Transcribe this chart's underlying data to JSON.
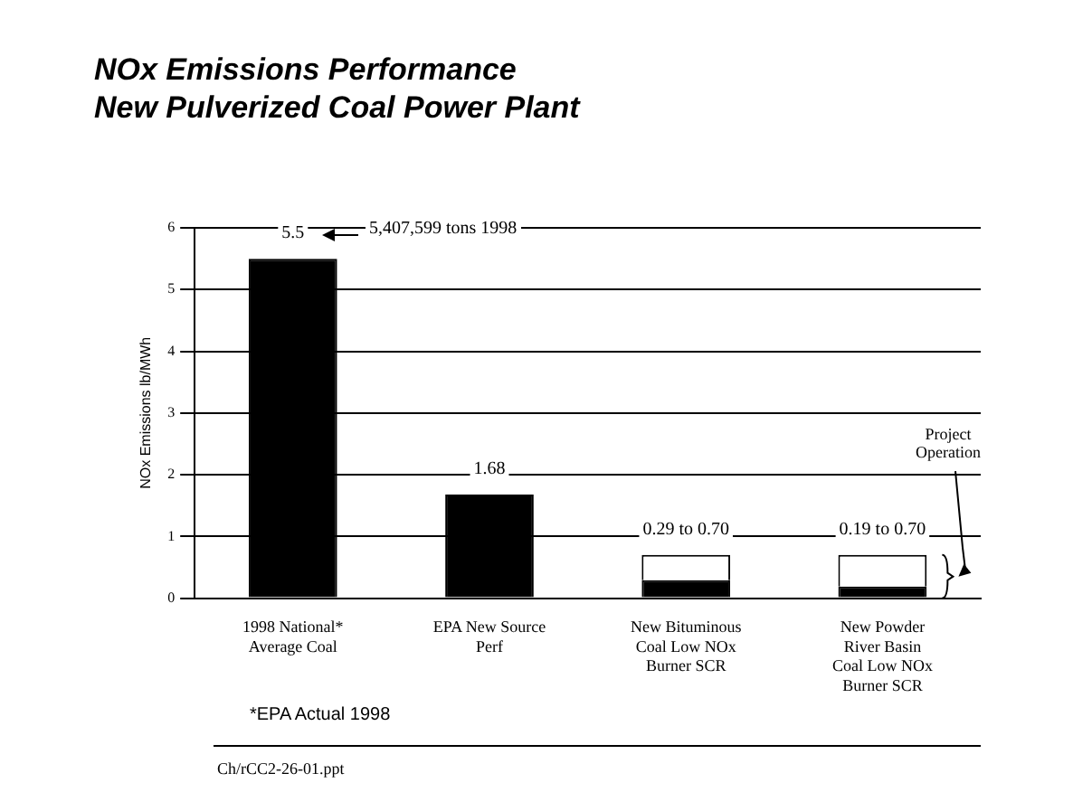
{
  "chart_data": {
    "type": "bar",
    "title": "NOx Emissions Performance\nNew Pulverized Coal Power Plant",
    "ylabel": "NOx Emissions lb/MWh",
    "categories": [
      "1998 National* Average Coal",
      "EPA New Source Perf",
      "New Bituminous Coal Low NOx Burner SCR",
      "New Powder River Basin Coal Low NOx Burner SCR"
    ],
    "series": [
      {
        "color": "#000000",
        "values": [
          5.5,
          1.68,
          0.29,
          0.19
        ]
      },
      {
        "color": "#ffffff",
        "values": [
          null,
          null,
          0.41,
          0.51
        ]
      }
    ],
    "stacked": true,
    "totals": [
      "5.5",
      "1.68",
      "0.29 to 0.70",
      "0.19 to 0.70"
    ],
    "ylim": [
      0,
      6
    ],
    "yticks": [
      0,
      1,
      2,
      3,
      4,
      5,
      6
    ],
    "grid": "y",
    "legend": false,
    "annotations": [
      "5,407,599 tons 1998",
      "Project Operation",
      "*EPA Actual 1998",
      "Ch/rCC2-26-01.ppt"
    ]
  }
}
